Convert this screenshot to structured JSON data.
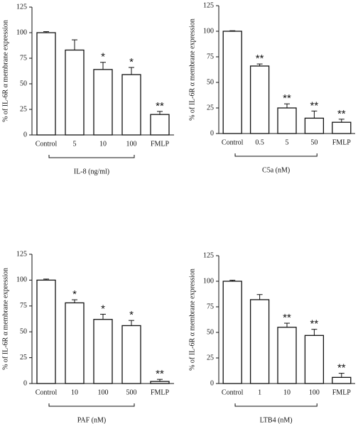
{
  "chart_data": [
    {
      "type": "bar",
      "ylabel": "% of IL-6R α membrane expression",
      "xlabel": "IL-8 (ng/ml)",
      "categories": [
        "Control",
        "5",
        "10",
        "100",
        "FMLP"
      ],
      "values": [
        100,
        83,
        64,
        59,
        20
      ],
      "errors": [
        1,
        10,
        7,
        7,
        3
      ],
      "annotations": [
        {
          "category": "10",
          "text": "*"
        },
        {
          "category": "100",
          "text": "*"
        },
        {
          "category": "FMLP",
          "text": "**"
        }
      ],
      "ylim": [
        0,
        125
      ],
      "yticks": [
        0,
        25,
        50,
        75,
        100,
        125
      ],
      "color": "#ffffff"
    },
    {
      "type": "bar",
      "ylabel": "% of IL-6R α membrane expression",
      "xlabel": "C5a (nM)",
      "categories": [
        "Control",
        "0.5",
        "5",
        "50",
        "FMLP"
      ],
      "values": [
        100,
        66,
        25,
        15,
        11
      ],
      "errors": [
        0.5,
        2,
        4,
        7,
        3
      ],
      "annotations": [
        {
          "category": "0.5",
          "text": "**"
        },
        {
          "category": "5",
          "text": "**"
        },
        {
          "category": "50",
          "text": "**"
        },
        {
          "category": "FMLP",
          "text": "**"
        }
      ],
      "ylim": [
        0,
        125
      ],
      "yticks": [
        0,
        25,
        50,
        75,
        100,
        125
      ],
      "color": "#ffffff"
    },
    {
      "type": "bar",
      "ylabel": "% of IL-6R α membrane expression",
      "xlabel": "PAF (nM)",
      "categories": [
        "Control",
        "10",
        "100",
        "500",
        "FMLP"
      ],
      "values": [
        100,
        78,
        62,
        56,
        2
      ],
      "errors": [
        1,
        3,
        5,
        5,
        2
      ],
      "annotations": [
        {
          "category": "10",
          "text": "*"
        },
        {
          "category": "100",
          "text": "*"
        },
        {
          "category": "500",
          "text": "*"
        },
        {
          "category": "FMLP",
          "text": "**"
        }
      ],
      "ylim": [
        0,
        125
      ],
      "yticks": [
        0,
        25,
        50,
        75,
        100,
        125
      ],
      "color": "#ffffff"
    },
    {
      "type": "bar",
      "ylabel": "% of IL-6R α membrane expression",
      "xlabel": "LTB4 (nM)",
      "categories": [
        "Control",
        "1",
        "10",
        "100",
        "FMLP"
      ],
      "values": [
        100,
        82,
        55,
        47,
        6
      ],
      "errors": [
        1,
        5,
        4,
        6,
        4
      ],
      "annotations": [
        {
          "category": "10",
          "text": "**"
        },
        {
          "category": "100",
          "text": "**"
        },
        {
          "category": "FMLP",
          "text": "**"
        }
      ],
      "ylim": [
        0,
        125
      ],
      "yticks": [
        0,
        25,
        50,
        75,
        100,
        125
      ],
      "color": "#ffffff"
    }
  ]
}
